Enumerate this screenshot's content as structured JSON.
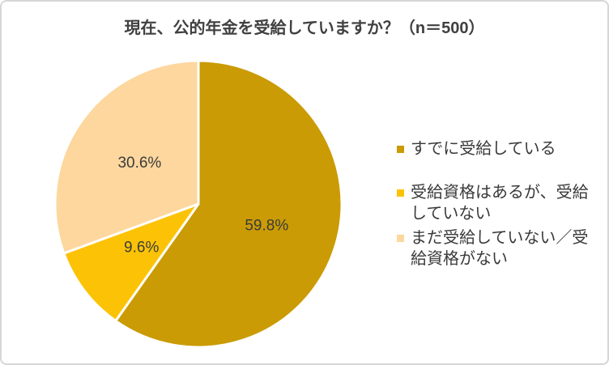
{
  "chart_data": {
    "type": "pie",
    "title": "現在、公的年金を受給していますか？（n＝500）",
    "start_angle_deg": 0,
    "direction": "clockwise",
    "legend_position": "right",
    "separator_color": "#ffffff",
    "slice_label_color": "#3b3b3b",
    "slices": [
      {
        "label": "すでに受給している",
        "value": 59.8,
        "display": "59.8%",
        "color": "#ca9b04"
      },
      {
        "label": "受給資格はあるが、受給していない",
        "value": 9.6,
        "display": "9.6%",
        "color": "#fcc306"
      },
      {
        "label": "まだ受給していない／受給資格がない",
        "value": 30.6,
        "display": "30.6%",
        "color": "#fdd79e"
      }
    ]
  },
  "style": {
    "background": "#ffffff",
    "frame_border_color": "#d6d6d6",
    "title_color": "#404040",
    "legend_text_color": "#3a3a3a"
  }
}
